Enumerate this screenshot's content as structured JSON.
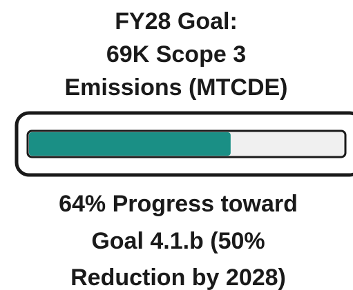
{
  "chart_data": {
    "type": "progress",
    "title": [
      "FY28 Goal:",
      "69K Scope 3",
      "Emissions (MTCDE)"
    ],
    "caption": [
      "64% Progress toward",
      "Goal 4.1.b (50%",
      "Reduction by 2028)"
    ],
    "values": [
      64
    ],
    "color": "#1a8f85",
    "xlim": [
      0,
      100
    ]
  }
}
